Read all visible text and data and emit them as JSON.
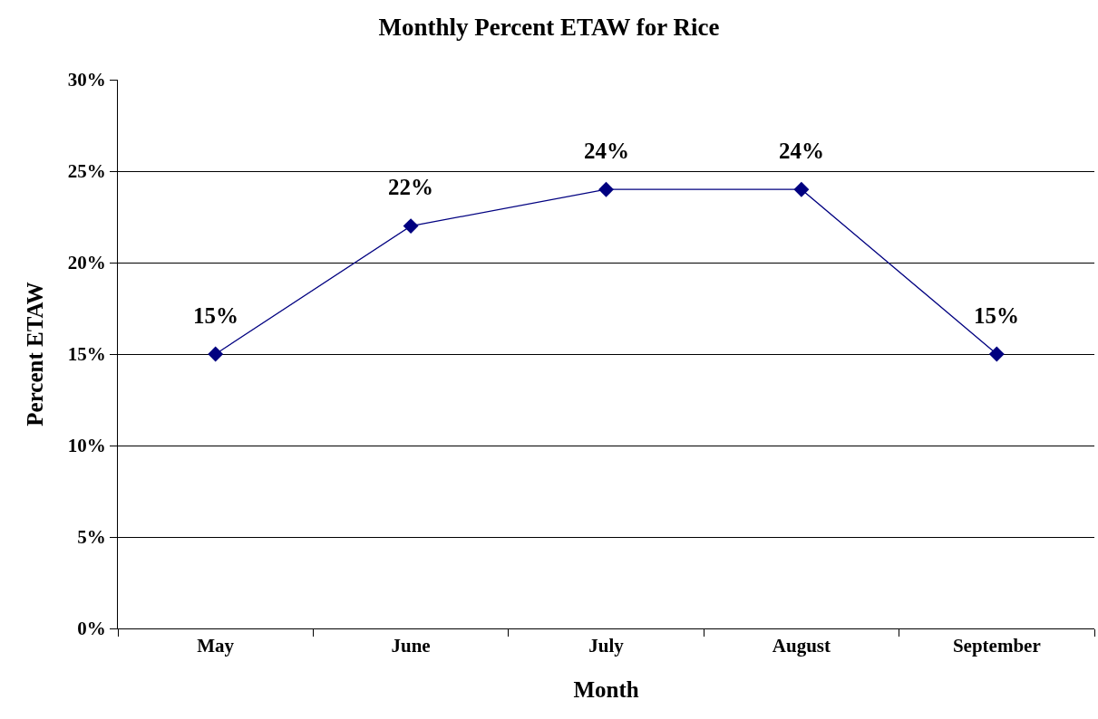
{
  "chart_data": {
    "type": "line",
    "title": "Monthly Percent ETAW for Rice",
    "xlabel": "Month",
    "ylabel": "Percent ETAW",
    "categories": [
      "May",
      "June",
      "July",
      "August",
      "September"
    ],
    "series": [
      {
        "color": "#000080",
        "values": [
          15,
          22,
          24,
          24,
          15
        ],
        "value_labels": [
          "15%",
          "22%",
          "24%",
          "24%",
          "15%"
        ]
      }
    ],
    "ylim": [
      0,
      30
    ],
    "yticks": [
      {
        "value": 0,
        "label": "0%"
      },
      {
        "value": 5,
        "label": "5%"
      },
      {
        "value": 10,
        "label": "10%"
      },
      {
        "value": 15,
        "label": "15%"
      },
      {
        "value": 20,
        "label": "20%"
      },
      {
        "value": 25,
        "label": "25%"
      },
      {
        "value": 30,
        "label": "30%"
      }
    ],
    "grid": "y",
    "marker": "diamond",
    "line_style": "solid"
  }
}
